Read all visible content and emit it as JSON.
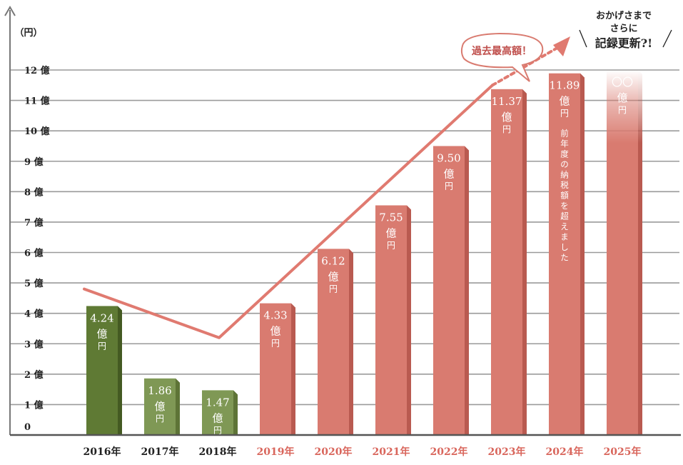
{
  "chart_data": {
    "type": "bar",
    "ylabel": "（円）",
    "ylim": [
      0,
      12
    ],
    "yticks": [
      {
        "value": 0,
        "label": "0"
      },
      {
        "value": 1,
        "label": "1 億"
      },
      {
        "value": 2,
        "label": "2 億"
      },
      {
        "value": 3,
        "label": "3 億"
      },
      {
        "value": 4,
        "label": "4 億"
      },
      {
        "value": 5,
        "label": "5 億"
      },
      {
        "value": 6,
        "label": "6 億"
      },
      {
        "value": 7,
        "label": "7 億"
      },
      {
        "value": 8,
        "label": "8 億"
      },
      {
        "value": 9,
        "label": "9 億"
      },
      {
        "value": 10,
        "label": "10 億"
      },
      {
        "value": 11,
        "label": "11 億"
      },
      {
        "value": 12,
        "label": "12 億"
      }
    ],
    "grid": true,
    "unit_big": "億",
    "unit_small": "円",
    "bars": [
      {
        "category": "2016年",
        "value": 4.24,
        "label": "4.24",
        "color": "#5f7a34",
        "side": "#445a22",
        "labelColor": "#222222"
      },
      {
        "category": "2017年",
        "value": 1.86,
        "label": "1.86",
        "color": "#7f9855",
        "side": "#5e7437",
        "labelColor": "#222222"
      },
      {
        "category": "2018年",
        "value": 1.47,
        "label": "1.47",
        "color": "#7f9855",
        "side": "#5e7437",
        "labelColor": "#222222"
      },
      {
        "category": "2019年",
        "value": 4.33,
        "label": "4.33",
        "color": "#d97b70",
        "side": "#b95a50",
        "labelColor": "#d9665c"
      },
      {
        "category": "2020年",
        "value": 6.12,
        "label": "6.12",
        "color": "#d97b70",
        "side": "#b95a50",
        "labelColor": "#d9665c"
      },
      {
        "category": "2021年",
        "value": 7.55,
        "label": "7.55",
        "color": "#d97b70",
        "side": "#b95a50",
        "labelColor": "#d9665c"
      },
      {
        "category": "2022年",
        "value": 9.5,
        "label": "9.50",
        "color": "#d97b70",
        "side": "#b95a50",
        "labelColor": "#d9665c"
      },
      {
        "category": "2023年",
        "value": 11.37,
        "label": "11.37",
        "color": "#d97b70",
        "side": "#b95a50",
        "labelColor": "#d9665c"
      },
      {
        "category": "2024年",
        "value": 11.89,
        "label": "11.89",
        "color": "#d97b70",
        "side": "#b95a50",
        "labelColor": "#d9665c"
      },
      {
        "category": "2025年",
        "value": 12.0,
        "label": "〇〇",
        "color": "#d97b70",
        "side": "#b95a50",
        "labelColor": "#d9665c",
        "fade": true
      }
    ],
    "trend_line": {
      "points": [
        [
          0,
          4.8
        ],
        [
          2,
          3.2
        ],
        [
          7,
          11.5
        ],
        [
          8,
          12.4
        ]
      ]
    },
    "annotations": {
      "record_callout": "過去最高額！",
      "bar_2024_note": "前年度の納税額を超えました",
      "top_right_line1": "おかげさまで",
      "top_right_line2": "さらに",
      "top_right_line3": "記録更新?!"
    },
    "colors": {
      "accent": "#e07a70",
      "grid": "#9a9a9a",
      "axis": "#777777"
    }
  }
}
